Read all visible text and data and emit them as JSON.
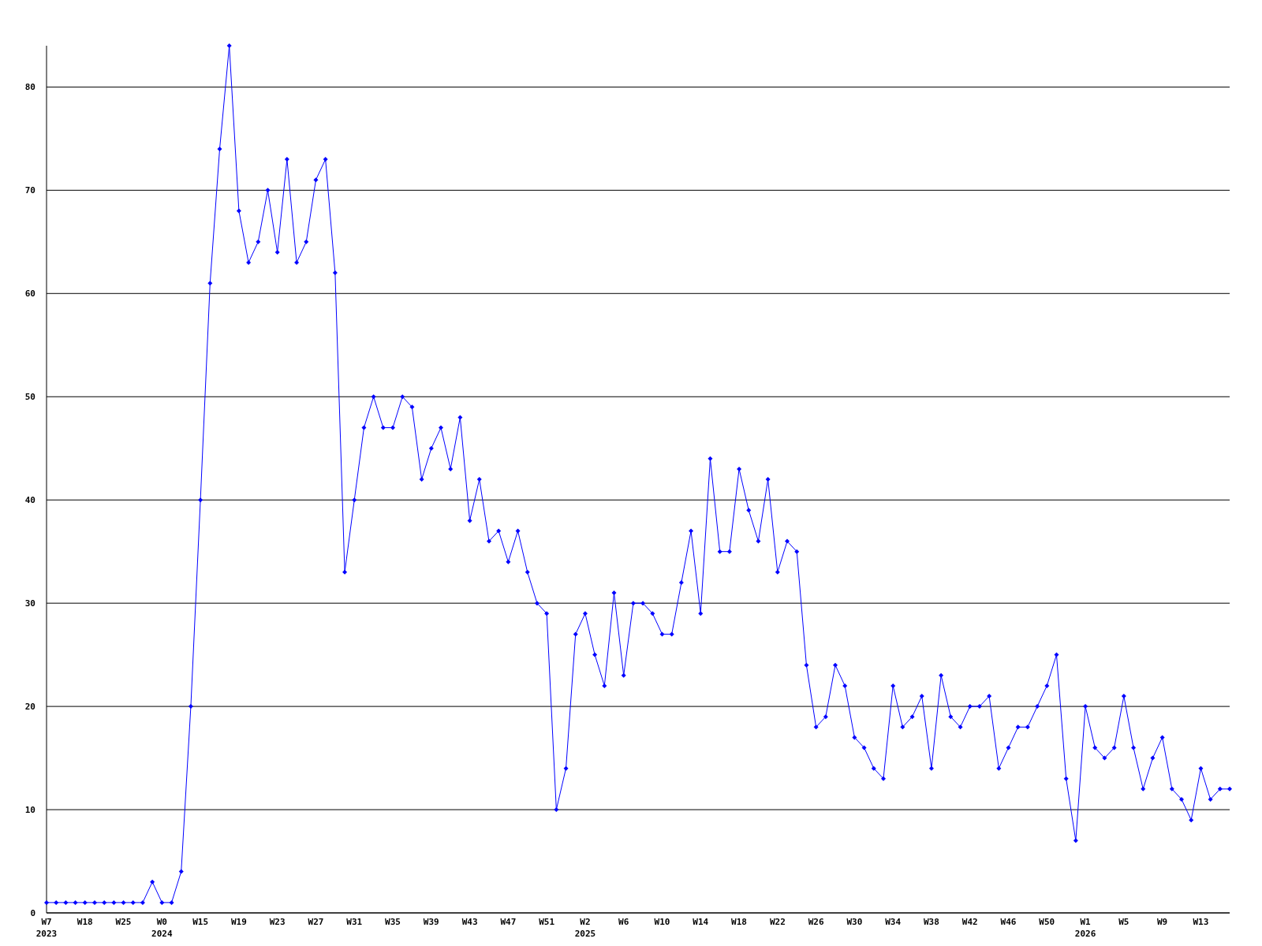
{
  "chart_data": {
    "type": "line",
    "categories": [
      "W7\n2023",
      null,
      null,
      null,
      "W18",
      null,
      null,
      null,
      "W25",
      null,
      null,
      null,
      "W0\n2024",
      null,
      null,
      null,
      "W15",
      null,
      null,
      null,
      "W19",
      null,
      null,
      null,
      "W23",
      null,
      null,
      null,
      "W27",
      null,
      null,
      null,
      "W31",
      null,
      null,
      null,
      "W35",
      null,
      null,
      null,
      "W39",
      null,
      null,
      null,
      "W43",
      null,
      null,
      null,
      "W47",
      null,
      null,
      null,
      "W51",
      null,
      null,
      null,
      "W2\n2025",
      null,
      null,
      null,
      "W6",
      null,
      null,
      null,
      "W10",
      null,
      null,
      null,
      "W14",
      null,
      null,
      null,
      "W18",
      null,
      null,
      null,
      "W22",
      null,
      null,
      null,
      "W26",
      null,
      null,
      null,
      "W30",
      null,
      null,
      null,
      "W34",
      null,
      null,
      null,
      "W38",
      null,
      null,
      null,
      "W42",
      null,
      null,
      null,
      "W46",
      null,
      null,
      null,
      "W50",
      null,
      null,
      null,
      "W1\n2026",
      null,
      null,
      null,
      "W5",
      null,
      null,
      null,
      "W9",
      null,
      null,
      null,
      "W13",
      null,
      null,
      null
    ],
    "series": [
      {
        "color": "#0000ff",
        "values": [
          1,
          1,
          1,
          1,
          1,
          1,
          1,
          1,
          1,
          1,
          1,
          3,
          1,
          1,
          4,
          20,
          40,
          61,
          74,
          84,
          68,
          63,
          65,
          70,
          64,
          73,
          63,
          65,
          71,
          73,
          62,
          33,
          40,
          47,
          50,
          47,
          47,
          50,
          49,
          42,
          45,
          47,
          43,
          48,
          38,
          42,
          36,
          37,
          34,
          37,
          33,
          30,
          29,
          10,
          14,
          27,
          29,
          25,
          22,
          31,
          23,
          30,
          30,
          29,
          27,
          27,
          32,
          37,
          29,
          44,
          35,
          35,
          43,
          39,
          36,
          42,
          33,
          36,
          35,
          24,
          18,
          19,
          24,
          22,
          17,
          16,
          14,
          13,
          22,
          18,
          19,
          21,
          14,
          23,
          19,
          18,
          20,
          20,
          21,
          14,
          16,
          18,
          18,
          20,
          22,
          25,
          13,
          7,
          20,
          16,
          15,
          16,
          21,
          16,
          12,
          15,
          17,
          12,
          11,
          9,
          14,
          11,
          12,
          12
        ]
      }
    ],
    "ylim": [
      0,
      84
    ],
    "yticks": [
      0,
      10,
      20,
      30,
      40,
      50,
      60,
      70,
      80
    ],
    "grid": "y",
    "marker": "diamond",
    "line_style": "solid"
  }
}
